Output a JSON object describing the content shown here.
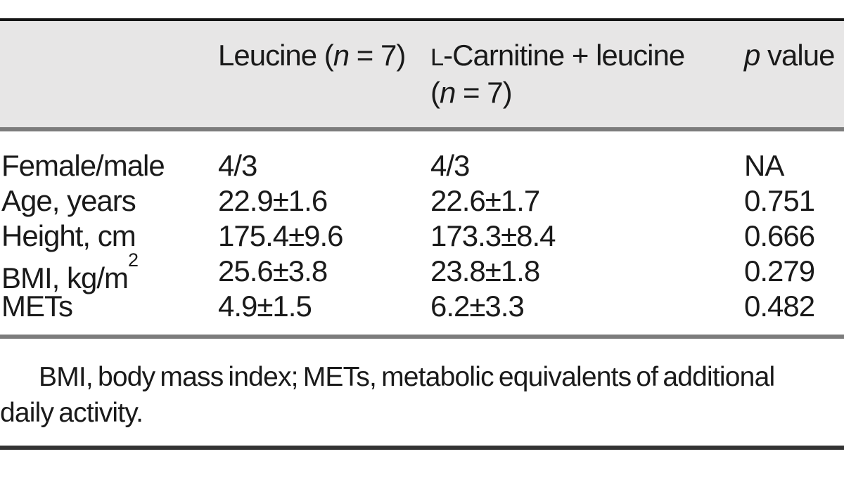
{
  "figure": {
    "type": "journal-table",
    "colors": {
      "header_bg": "#e7e6e6",
      "text": "#1a1a1a",
      "top_rule": "#151515",
      "mid_rule": "#7c7c7c",
      "bottom_rule": "#333333"
    }
  },
  "table": {
    "header": {
      "row_label_col": "",
      "leucine": {
        "pre": "Leucine (",
        "n": "n",
        "post": " = 7)"
      },
      "carnitine": {
        "smallcap_l": "L",
        "line1_rest": "-Carnitine + leucine",
        "line2_pre": "(",
        "line2_n": "n",
        "line2_post": " = 7)"
      },
      "p_value": {
        "p": "p",
        "rest": " value"
      }
    },
    "rows": [
      {
        "label": "Female/male",
        "leucine": "4/3",
        "carnitine_leucine": "4/3",
        "p_value": "NA"
      },
      {
        "label": "Age, years",
        "leucine": "22.9±1.6",
        "carnitine_leucine": "22.6±1.7",
        "p_value": "0.751"
      },
      {
        "label": "Height, cm",
        "leucine": "175.4±9.6",
        "carnitine_leucine": "173.3±8.4",
        "p_value": "0.666"
      },
      {
        "label": "BMI, kg/m",
        "label_sup": "2",
        "leucine": "25.6±3.8",
        "carnitine_leucine": "23.8±1.8",
        "p_value": "0.279"
      },
      {
        "label": "METs",
        "leucine": "4.9±1.5",
        "carnitine_leucine": "6.2±3.3",
        "p_value": "0.482"
      }
    ],
    "footnote": {
      "line1": "BMI, body mass index; METs, metabolic equivalents of additional",
      "line2": "daily activity."
    }
  }
}
